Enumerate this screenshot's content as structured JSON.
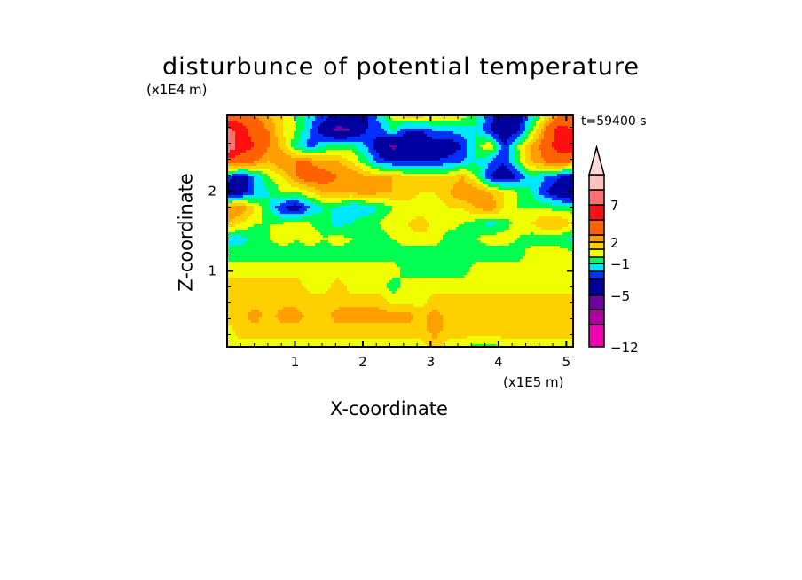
{
  "chart_data": {
    "type": "heatmap",
    "subtype": "filled-contour",
    "title": "disturbunce of potential temperature",
    "xlabel": "X-coordinate",
    "ylabel": "Z-coordinate",
    "x_unit_label": "(x1E5 m)",
    "y_unit_label": "(x1E4 m)",
    "annotation": "t=59400 s",
    "xlim": [
      0,
      5.1
    ],
    "ylim": [
      0.05,
      2.95
    ],
    "x_ticks": [
      "1",
      "2",
      "3",
      "4",
      "5"
    ],
    "x_tick_values": [
      1,
      2,
      3,
      4,
      5
    ],
    "y_ticks": [
      "1",
      "2"
    ],
    "y_tick_values": [
      1,
      2
    ],
    "grid": false,
    "colorbar": {
      "position": "right",
      "levels": [
        -12,
        -9,
        -7,
        -5,
        -3,
        -2,
        -1,
        0,
        1,
        2,
        3,
        5,
        7,
        9,
        11
      ],
      "colors": [
        "#f000b0",
        "#b000a0",
        "#7000a0",
        "#0000a0",
        "#0030ff",
        "#00e8ff",
        "#00ff50",
        "#f0ff00",
        "#ffd000",
        "#ffa000",
        "#ff6000",
        "#ff1010",
        "#ff7070",
        "#ffc0c0"
      ],
      "over_color": "#ffd8d8",
      "tick_labels": [
        "7",
        "2",
        "−1",
        "−5",
        "−12"
      ],
      "tick_values": [
        7,
        2,
        -1,
        -5,
        -12
      ]
    },
    "grid_note_rows": "rows from top (z high) to bottom (z low), columns left to right",
    "z": [
      [
        4,
        4,
        3,
        2,
        1,
        0,
        -1.5,
        -2.5,
        -3.5,
        -4,
        -3.5,
        -1.5,
        0.5,
        1.5,
        1.5,
        1,
        1,
        0.5,
        -1,
        -2.5,
        -4,
        -4,
        -1.5,
        1,
        3,
        4
      ],
      [
        8,
        6,
        4,
        3,
        1,
        0,
        -2,
        -4,
        -5.5,
        -5,
        -3,
        -2.5,
        -1,
        -3,
        -3,
        -2,
        -2,
        -1.5,
        -1,
        -3,
        -4.5,
        -3.5,
        0,
        3,
        6,
        5
      ],
      [
        9,
        6,
        5,
        3,
        1.5,
        -1,
        -2.5,
        -1,
        -0.5,
        -0.5,
        -2,
        -4,
        -5.5,
        -4,
        -4,
        -4,
        -4,
        -3,
        -0.5,
        1,
        -3,
        0,
        2,
        4,
        6,
        6
      ],
      [
        4,
        4,
        3,
        2,
        3,
        3,
        3,
        2,
        2,
        1,
        -0.5,
        -2.5,
        -3,
        -3,
        -3,
        -3,
        -2.5,
        -2,
        -1,
        -2,
        -3,
        -0.5,
        2,
        3,
        4,
        3
      ],
      [
        -2,
        -4,
        -2,
        0,
        1,
        3,
        4,
        4,
        3,
        3,
        2,
        2,
        2,
        1,
        1,
        1,
        1,
        2,
        0,
        -3,
        -4,
        -3,
        -1,
        -2,
        -3,
        -4
      ],
      [
        -5,
        -4,
        -2,
        -1,
        0,
        0,
        1,
        2,
        2,
        2,
        3,
        2,
        2,
        2,
        1,
        1,
        2,
        3,
        3,
        2,
        1,
        0,
        -1,
        -3,
        -4,
        -5
      ],
      [
        3,
        3,
        1,
        -1,
        -3,
        -4,
        -2,
        -1,
        -1,
        -2,
        -2,
        -1,
        0,
        0,
        0,
        0,
        1,
        1,
        2,
        3,
        1,
        0,
        0,
        0,
        -0.5,
        -0.5
      ],
      [
        2,
        1,
        0,
        0,
        0,
        0.5,
        0,
        -0.5,
        -1.5,
        -1,
        0,
        0,
        1,
        1,
        2,
        0.5,
        0.5,
        0,
        -0.5,
        -1.5,
        -0.5,
        0.5,
        1,
        2,
        2,
        1
      ],
      [
        -1.5,
        -1.5,
        -0.5,
        0,
        0.5,
        0,
        0.5,
        0,
        0.5,
        0,
        -0.5,
        -0.5,
        0,
        0.5,
        0.5,
        0.5,
        -0.5,
        -0.5,
        0,
        0.5,
        0.5,
        0,
        -0.5,
        -0.5,
        -0.5,
        -1.5
      ],
      [
        -0.5,
        -0.5,
        -0.5,
        -0.5,
        -0.5,
        -0.5,
        -0.5,
        -0.5,
        -0.5,
        -0.5,
        -0.5,
        -0.5,
        -0.5,
        -0.5,
        -0.5,
        -0.5,
        -1,
        -0.5,
        -0.5,
        -0.5,
        -0.5,
        -0.5,
        0.5,
        0.5,
        0.5,
        0.5
      ],
      [
        0.5,
        0.5,
        0.5,
        0.5,
        0.5,
        0.5,
        0.5,
        0.5,
        0.5,
        0.5,
        0.5,
        0.5,
        0.5,
        -0.5,
        -0.5,
        -0.5,
        -0.5,
        -0.5,
        0.5,
        0.5,
        0.5,
        0.5,
        0.5,
        0.5,
        0.5,
        0.5
      ],
      [
        1.5,
        1.5,
        1.5,
        1.5,
        1.5,
        1.5,
        0.5,
        0.5,
        1.5,
        0.5,
        0.5,
        0.5,
        -0.5,
        0.5,
        0.5,
        0.5,
        0.5,
        0.5,
        0.5,
        0.5,
        0.5,
        0.5,
        0.5,
        0.5,
        0.5,
        0.5
      ],
      [
        1.5,
        1.5,
        1.5,
        1.5,
        1.5,
        1.5,
        1.5,
        1.5,
        1.5,
        1.5,
        1.5,
        1.5,
        0.5,
        0.5,
        0.5,
        1.5,
        1.5,
        1.5,
        1.5,
        1.5,
        1.5,
        1.5,
        1.5,
        1.5,
        1.5,
        1.5
      ],
      [
        1.5,
        1.5,
        2.5,
        1.5,
        2.5,
        2.5,
        1.5,
        1.5,
        2.5,
        2.5,
        2.5,
        2.5,
        2.5,
        2.5,
        1.5,
        2.5,
        1.5,
        1.5,
        1.5,
        1.5,
        1.5,
        1.5,
        1.5,
        1.5,
        1.5,
        1.5
      ],
      [
        0.5,
        1.5,
        1.5,
        1.5,
        1.5,
        1.5,
        1.5,
        1.5,
        1.5,
        1.5,
        1.5,
        1.5,
        1.5,
        1.5,
        1.5,
        2.5,
        1.5,
        1.5,
        1.5,
        1.5,
        1.5,
        1.5,
        1.5,
        1.5,
        1.5,
        1.5
      ],
      [
        0.5,
        0.5,
        0.5,
        0.5,
        0.5,
        0.5,
        0.5,
        0.5,
        0.5,
        0.5,
        0.5,
        0.5,
        0.5,
        0.5,
        0.5,
        1.5,
        0.5,
        0.5,
        -0.5,
        -0.5,
        0.5,
        0.5,
        0.5,
        0.5,
        0.5,
        0.5
      ]
    ]
  }
}
